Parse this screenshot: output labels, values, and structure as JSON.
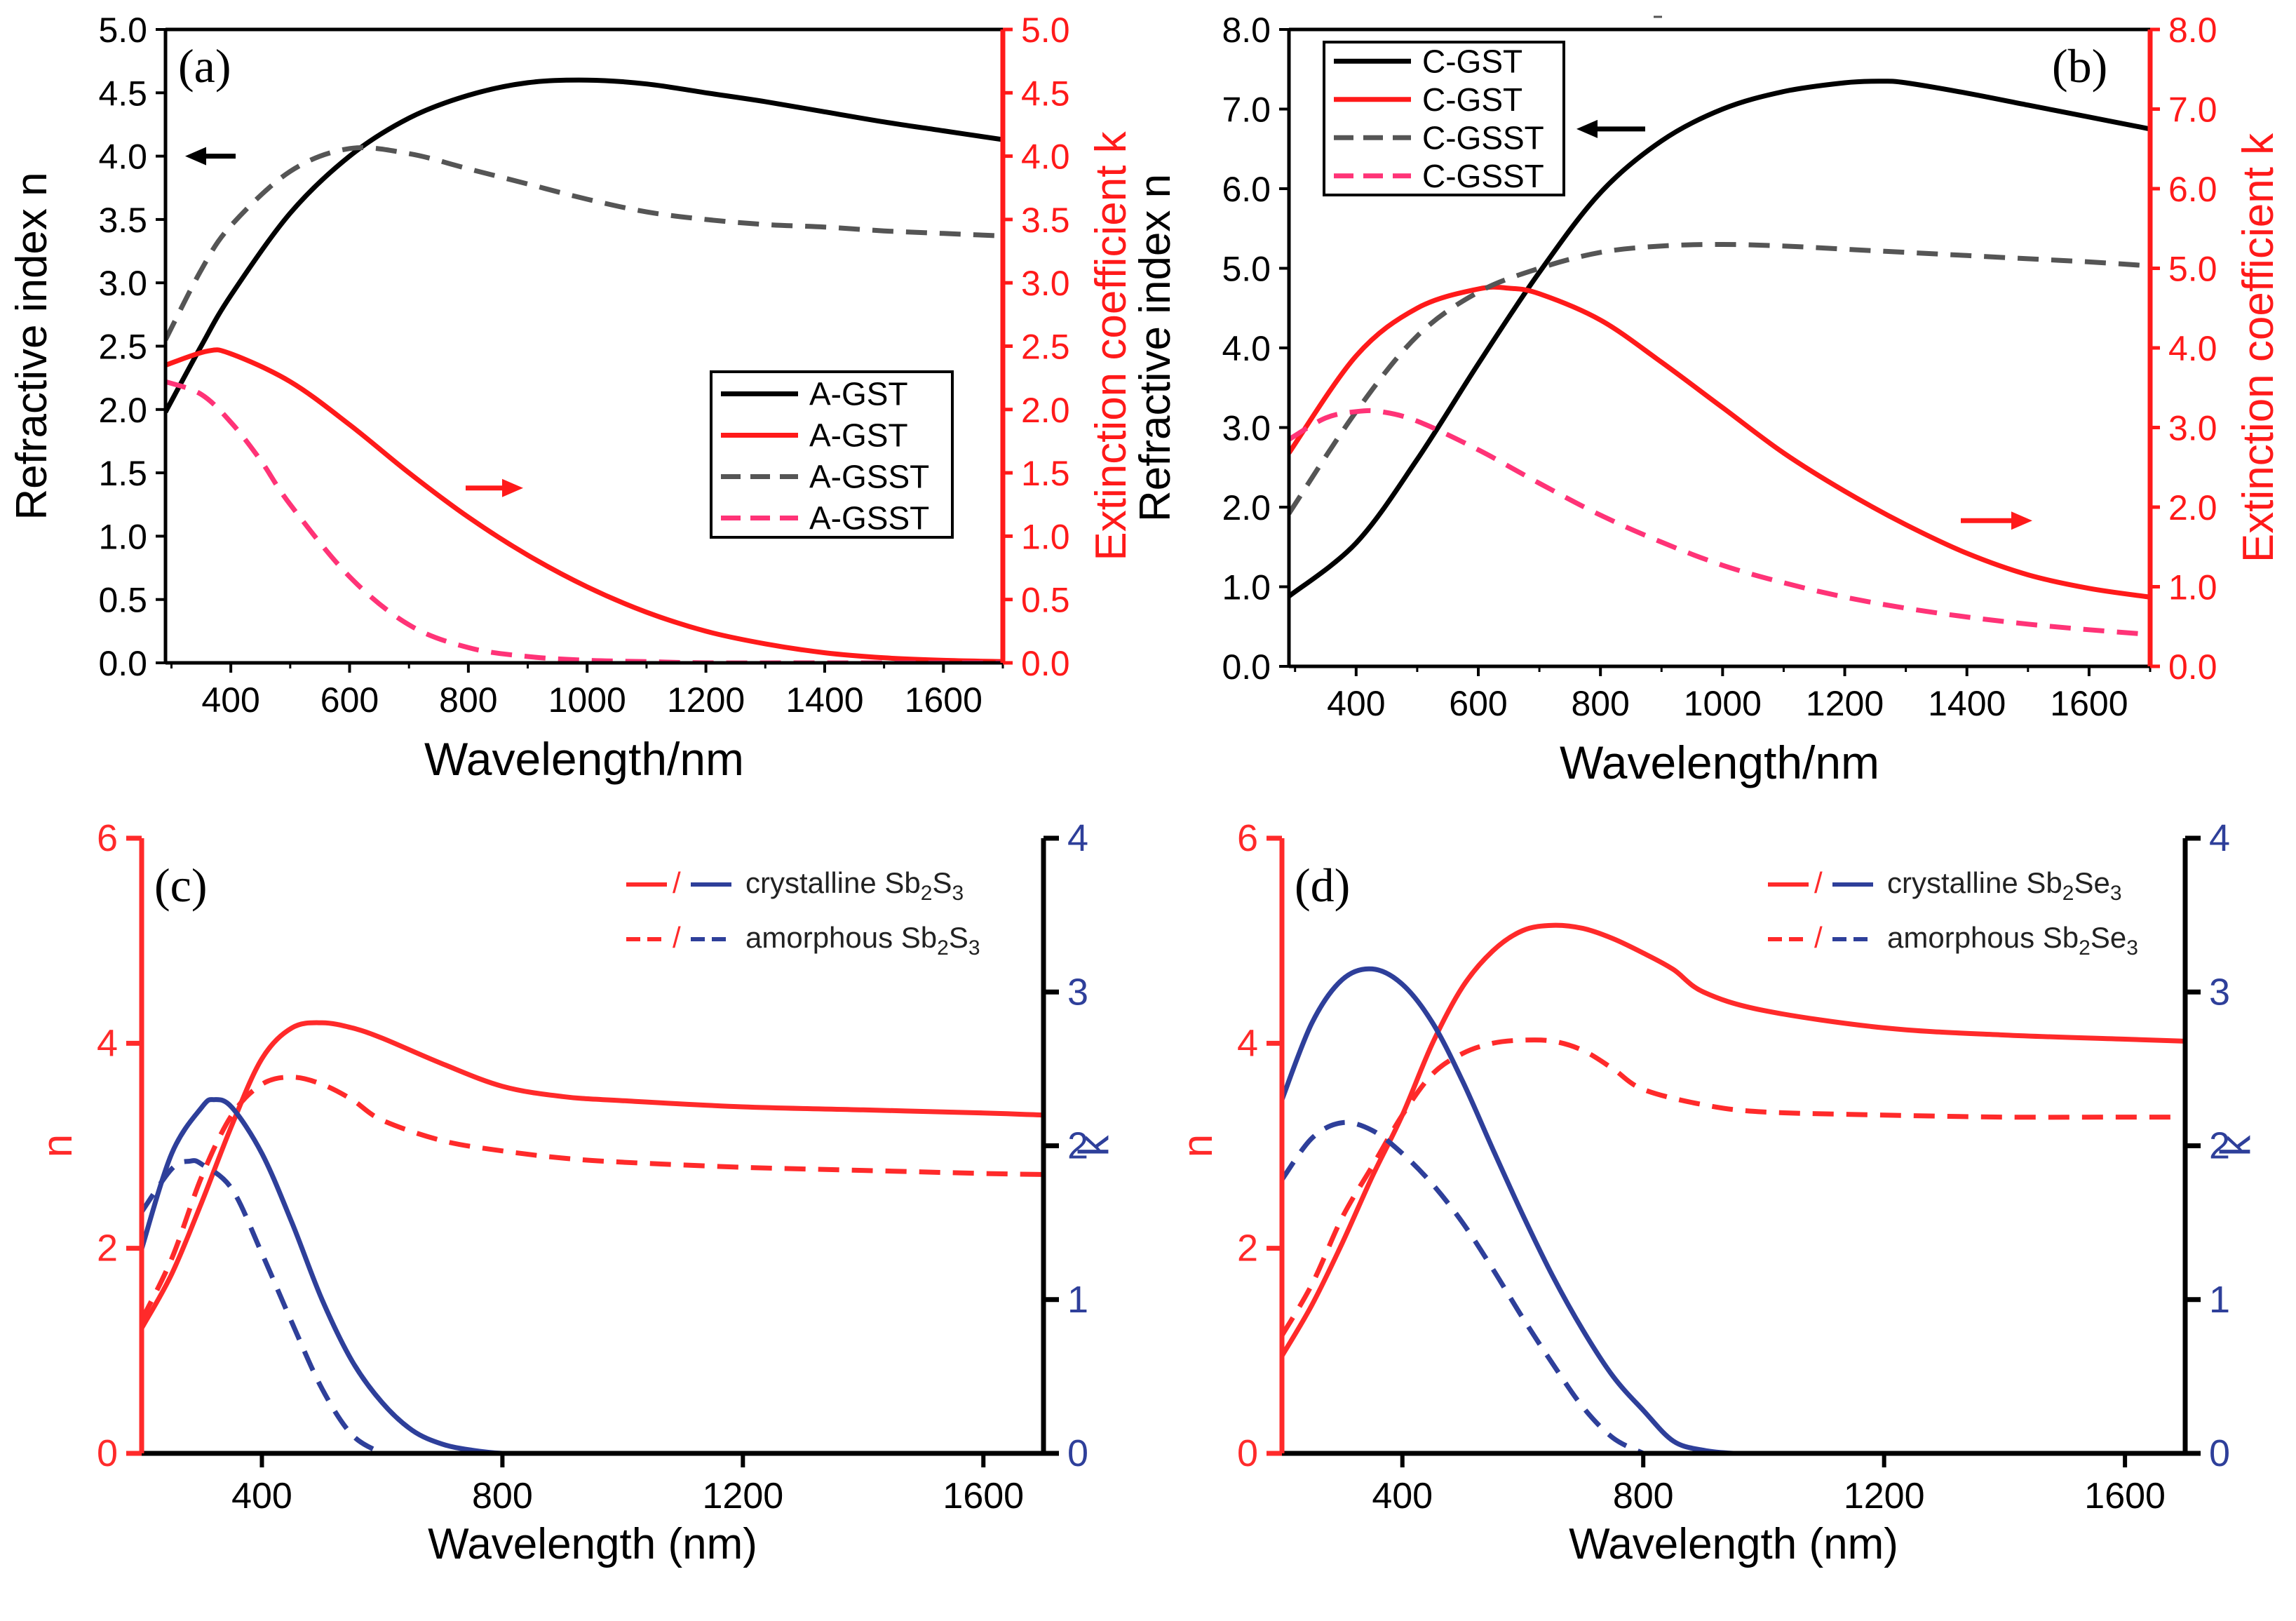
{
  "chart_data": [
    {
      "id": "a",
      "type": "line",
      "panel_label": "(a)",
      "xlabel": "Wavelength/nm",
      "ylabel_left": "Refractive index n",
      "ylabel_right": "Extinction coefficient k",
      "xlim": [
        290,
        1700
      ],
      "ylim_left": [
        0,
        5
      ],
      "ylim_right": [
        0,
        5
      ],
      "x_ticks": [
        "400",
        "600",
        "800",
        "1000",
        "1200",
        "1400",
        "1600"
      ],
      "y_ticks_left": [
        "0.0",
        "0.5",
        "1.0",
        "1.5",
        "2.0",
        "2.5",
        "3.0",
        "3.5",
        "4.0",
        "4.5",
        "5.0"
      ],
      "y_ticks_right": [
        "0.0",
        "0.5",
        "1.0",
        "1.5",
        "2.0",
        "2.5",
        "3.0",
        "3.5",
        "4.0",
        "4.5",
        "5.0"
      ],
      "legend_position": "center-right",
      "colors": {
        "left_axis": "#000000",
        "right_axis": "#ff1a1a"
      },
      "series": [
        {
          "name": "A-GST",
          "axis": "left",
          "color": "#000000",
          "dash": "solid",
          "x": [
            290,
            350,
            400,
            500,
            600,
            700,
            800,
            900,
            1000,
            1100,
            1200,
            1300,
            1400,
            1500,
            1600,
            1700
          ],
          "values": [
            1.98,
            2.5,
            2.9,
            3.55,
            4.0,
            4.3,
            4.48,
            4.58,
            4.6,
            4.57,
            4.5,
            4.43,
            4.35,
            4.27,
            4.2,
            4.13
          ]
        },
        {
          "name": "A-GST",
          "axis": "right",
          "color": "#ff1a1a",
          "dash": "solid",
          "x": [
            290,
            360,
            400,
            500,
            600,
            700,
            800,
            900,
            1000,
            1100,
            1200,
            1300,
            1400,
            1500,
            1600,
            1700
          ],
          "values": [
            2.35,
            2.46,
            2.44,
            2.22,
            1.88,
            1.5,
            1.15,
            0.85,
            0.6,
            0.4,
            0.25,
            0.15,
            0.08,
            0.04,
            0.02,
            0.01
          ]
        },
        {
          "name": "A-GSST",
          "axis": "left",
          "color": "#555555",
          "dash": "dashed",
          "x": [
            290,
            350,
            400,
            500,
            600,
            700,
            800,
            900,
            1000,
            1100,
            1200,
            1300,
            1400,
            1500,
            1600,
            1700
          ],
          "values": [
            2.55,
            3.1,
            3.45,
            3.88,
            4.06,
            4.02,
            3.9,
            3.78,
            3.66,
            3.56,
            3.5,
            3.46,
            3.44,
            3.41,
            3.39,
            3.37
          ]
        },
        {
          "name": "A-GSST",
          "axis": "right",
          "color": "#ff3377",
          "dash": "dashed",
          "x": [
            290,
            350,
            400,
            450,
            500,
            600,
            700,
            800,
            900,
            1000,
            1100,
            1200,
            1400,
            1700
          ],
          "values": [
            2.22,
            2.12,
            1.9,
            1.6,
            1.25,
            0.68,
            0.3,
            0.12,
            0.05,
            0.02,
            0.01,
            0.0,
            0.0,
            0.0
          ]
        }
      ],
      "arrows": [
        {
          "direction": "left",
          "axis": "left",
          "color": "#000000"
        },
        {
          "direction": "right",
          "axis": "right",
          "color": "#ff1a1a"
        }
      ]
    },
    {
      "id": "b",
      "type": "line",
      "panel_label": "(b)",
      "xlabel": "Wavelength/nm",
      "ylabel_left": "Refractive index n",
      "ylabel_right": "Extinction coefficient k",
      "xlim": [
        290,
        1700
      ],
      "ylim_left": [
        0,
        8
      ],
      "ylim_right": [
        0,
        8
      ],
      "x_ticks": [
        "400",
        "600",
        "800",
        "1000",
        "1200",
        "1400",
        "1600"
      ],
      "y_ticks_left": [
        "0.0",
        "1.0",
        "2.0",
        "3.0",
        "4.0",
        "5.0",
        "6.0",
        "7.0",
        "8.0"
      ],
      "y_ticks_right": [
        "0.0",
        "1.0",
        "2.0",
        "3.0",
        "4.0",
        "5.0",
        "6.0",
        "7.0",
        "8.0"
      ],
      "legend_position": "top-left",
      "colors": {
        "left_axis": "#000000",
        "right_axis": "#ff1a1a"
      },
      "series": [
        {
          "name": "C-GST",
          "axis": "left",
          "color": "#000000",
          "dash": "solid",
          "x": [
            290,
            400,
            500,
            600,
            700,
            800,
            900,
            1000,
            1100,
            1200,
            1260,
            1300,
            1400,
            1500,
            1600,
            1700
          ],
          "values": [
            0.88,
            1.55,
            2.6,
            3.8,
            4.95,
            5.95,
            6.6,
            7.0,
            7.22,
            7.33,
            7.35,
            7.33,
            7.2,
            7.05,
            6.9,
            6.75
          ]
        },
        {
          "name": "C-GST",
          "axis": "right",
          "color": "#ff1a1a",
          "dash": "solid",
          "x": [
            290,
            400,
            500,
            600,
            650,
            700,
            800,
            900,
            1000,
            1100,
            1200,
            1300,
            1400,
            1500,
            1600,
            1700
          ],
          "values": [
            2.68,
            3.9,
            4.5,
            4.74,
            4.75,
            4.68,
            4.35,
            3.82,
            3.25,
            2.68,
            2.2,
            1.78,
            1.42,
            1.15,
            0.98,
            0.87
          ]
        },
        {
          "name": "C-GSST",
          "axis": "left",
          "color": "#555555",
          "dash": "dashed",
          "x": [
            290,
            400,
            500,
            600,
            700,
            800,
            900,
            1000,
            1100,
            1200,
            1300,
            1400,
            1500,
            1600,
            1700
          ],
          "values": [
            1.92,
            3.2,
            4.15,
            4.7,
            5.0,
            5.2,
            5.28,
            5.3,
            5.28,
            5.24,
            5.2,
            5.16,
            5.12,
            5.08,
            5.03
          ]
        },
        {
          "name": "C-GSST",
          "axis": "right",
          "color": "#ff3377",
          "dash": "dashed",
          "x": [
            290,
            350,
            400,
            440,
            500,
            600,
            700,
            800,
            900,
            1000,
            1100,
            1200,
            1300,
            1400,
            1500,
            1600,
            1700
          ],
          "values": [
            2.85,
            3.12,
            3.2,
            3.2,
            3.08,
            2.72,
            2.3,
            1.9,
            1.56,
            1.27,
            1.05,
            0.87,
            0.73,
            0.62,
            0.53,
            0.46,
            0.4
          ]
        }
      ],
      "arrows": [
        {
          "direction": "left",
          "axis": "left",
          "color": "#000000"
        },
        {
          "direction": "right",
          "axis": "right",
          "color": "#ff1a1a"
        }
      ]
    },
    {
      "id": "c",
      "type": "line",
      "panel_label": "(c)",
      "xlabel": "Wavelength (nm)",
      "ylabel_left": "n",
      "ylabel_right": "k",
      "xlim": [
        200,
        1700
      ],
      "ylim_left": [
        0,
        6
      ],
      "ylim_right": [
        0,
        4
      ],
      "x_ticks": [
        "400",
        "800",
        "1200",
        "1600"
      ],
      "y_ticks_left": [
        "0",
        "2",
        "4",
        "6"
      ],
      "y_ticks_right": [
        "0",
        "1",
        "2",
        "3",
        "4"
      ],
      "legend_position": "top-right",
      "colors": {
        "left_axis": "#ff2a2a",
        "right_axis": "#2e3f9a"
      },
      "legend": [
        {
          "separator": "/",
          "material": "crystalline",
          "formula": "Sb",
          "sub1": "2",
          "mid": "S",
          "sub2": "3",
          "dash": "solid"
        },
        {
          "separator": "/",
          "material": "amorphous",
          "formula": "Sb",
          "sub1": "2",
          "mid": "S",
          "sub2": "3",
          "dash": "dashed"
        }
      ],
      "series": [
        {
          "name": "crystalline n",
          "axis": "left",
          "color": "#ff2a2a",
          "dash": "solid",
          "x": [
            200,
            250,
            300,
            350,
            400,
            450,
            500,
            550,
            600,
            700,
            800,
            900,
            1000,
            1200,
            1400,
            1600,
            1700
          ],
          "values": [
            1.22,
            1.75,
            2.45,
            3.2,
            3.85,
            4.15,
            4.2,
            4.15,
            4.05,
            3.8,
            3.58,
            3.48,
            3.44,
            3.38,
            3.35,
            3.32,
            3.3
          ]
        },
        {
          "name": "amorphous n",
          "axis": "left",
          "color": "#ff2a2a",
          "dash": "dashed",
          "x": [
            200,
            250,
            300,
            350,
            400,
            450,
            500,
            550,
            600,
            700,
            800,
            900,
            1000,
            1200,
            1400,
            1600,
            1700
          ],
          "values": [
            1.3,
            1.9,
            2.7,
            3.3,
            3.6,
            3.67,
            3.6,
            3.45,
            3.25,
            3.05,
            2.95,
            2.88,
            2.84,
            2.79,
            2.76,
            2.73,
            2.72
          ]
        },
        {
          "name": "crystalline k",
          "axis": "right",
          "color": "#2e3f9a",
          "dash": "solid",
          "x": [
            200,
            250,
            300,
            320,
            350,
            400,
            450,
            500,
            550,
            600,
            650,
            700,
            750,
            800,
            850
          ],
          "values": [
            1.33,
            1.95,
            2.25,
            2.3,
            2.25,
            1.95,
            1.5,
            1.0,
            0.6,
            0.33,
            0.15,
            0.06,
            0.02,
            0.0,
            0.0
          ]
        },
        {
          "name": "amorphous k",
          "axis": "right",
          "color": "#2e3f9a",
          "dash": "dashed",
          "x": [
            200,
            250,
            280,
            300,
            350,
            400,
            450,
            500,
            550,
            600
          ],
          "values": [
            1.57,
            1.85,
            1.9,
            1.88,
            1.72,
            1.3,
            0.85,
            0.42,
            0.12,
            0.0
          ]
        }
      ]
    },
    {
      "id": "d",
      "type": "line",
      "panel_label": "(d)",
      "xlabel": "Wavelength (nm)",
      "ylabel_left": "n",
      "ylabel_right": "k",
      "xlim": [
        200,
        1700
      ],
      "ylim_left": [
        0,
        6
      ],
      "ylim_right": [
        0,
        4
      ],
      "x_ticks": [
        "400",
        "800",
        "1200",
        "1600"
      ],
      "y_ticks_left": [
        "0",
        "2",
        "4",
        "6"
      ],
      "y_ticks_right": [
        "0",
        "1",
        "2",
        "3",
        "4"
      ],
      "legend_position": "top-right",
      "colors": {
        "left_axis": "#ff2a2a",
        "right_axis": "#2e3f9a"
      },
      "legend": [
        {
          "separator": "/",
          "material": "crystalline",
          "formula": "Sb",
          "sub1": "2",
          "mid": "Se",
          "sub2": "3",
          "dash": "solid"
        },
        {
          "separator": "/",
          "material": "amorphous",
          "formula": "Sb",
          "sub1": "2",
          "mid": "Se",
          "sub2": "3",
          "dash": "dashed"
        }
      ],
      "series": [
        {
          "name": "crystalline n",
          "axis": "left",
          "color": "#ff2a2a",
          "dash": "solid",
          "x": [
            200,
            250,
            300,
            350,
            400,
            450,
            500,
            550,
            600,
            650,
            700,
            750,
            800,
            850,
            900,
            1000,
            1200,
            1400,
            1600,
            1700
          ],
          "values": [
            0.95,
            1.45,
            2.05,
            2.7,
            3.3,
            4.0,
            4.55,
            4.9,
            5.1,
            5.15,
            5.12,
            5.02,
            4.88,
            4.72,
            4.5,
            4.32,
            4.15,
            4.08,
            4.04,
            4.02
          ]
        },
        {
          "name": "amorphous n",
          "axis": "left",
          "color": "#ff2a2a",
          "dash": "dashed",
          "x": [
            200,
            250,
            300,
            350,
            400,
            450,
            500,
            550,
            600,
            650,
            700,
            750,
            800,
            900,
            1000,
            1200,
            1400,
            1600,
            1700
          ],
          "values": [
            1.15,
            1.65,
            2.3,
            2.8,
            3.3,
            3.7,
            3.9,
            4.0,
            4.03,
            4.02,
            3.93,
            3.75,
            3.55,
            3.4,
            3.33,
            3.3,
            3.28,
            3.28,
            3.28
          ]
        },
        {
          "name": "crystalline k",
          "axis": "right",
          "color": "#2e3f9a",
          "dash": "solid",
          "x": [
            200,
            250,
            300,
            350,
            400,
            450,
            500,
            550,
            600,
            650,
            700,
            750,
            800,
            850,
            900,
            950,
            1000
          ],
          "values": [
            2.3,
            2.8,
            3.08,
            3.15,
            3.05,
            2.8,
            2.42,
            1.98,
            1.55,
            1.15,
            0.8,
            0.5,
            0.28,
            0.08,
            0.02,
            0.0,
            0.0
          ]
        },
        {
          "name": "amorphous k",
          "axis": "right",
          "color": "#2e3f9a",
          "dash": "dashed",
          "x": [
            200,
            250,
            300,
            350,
            400,
            450,
            500,
            550,
            600,
            650,
            700,
            750,
            800
          ],
          "values": [
            1.78,
            2.05,
            2.15,
            2.1,
            1.95,
            1.75,
            1.5,
            1.2,
            0.88,
            0.58,
            0.3,
            0.1,
            0.0
          ]
        }
      ]
    }
  ]
}
